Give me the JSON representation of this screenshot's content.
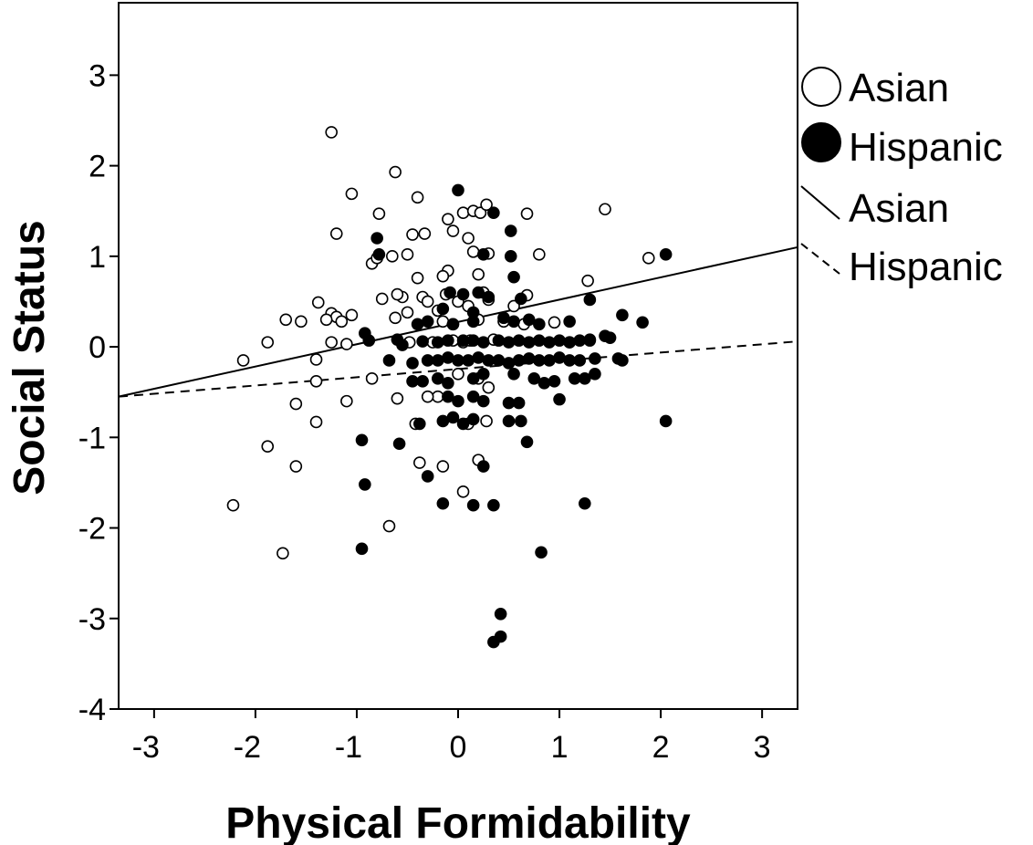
{
  "chart_data": {
    "type": "scatter",
    "title": "",
    "xlabel": "Physical Formidability",
    "ylabel": "Social Status",
    "xlim": [
      -3.35,
      3.35
    ],
    "ylim": [
      -4,
      3.8
    ],
    "x_ticks": [
      "-3",
      "-2",
      "-1",
      "0",
      "1",
      "2",
      "3"
    ],
    "y_ticks": [
      "3",
      "2",
      "1",
      "0",
      "-1",
      "-2",
      "-3",
      "-4"
    ],
    "grid": false,
    "legend_position": "right",
    "legend": {
      "asian_points": "Asian",
      "hispanic_points": "Hispanic",
      "asian_line": "Asian",
      "hispanic_line": "Hispanic"
    },
    "colors": {
      "asian_fill": "#ffffff",
      "hispanic_fill": "#000000",
      "stroke": "#000000"
    },
    "fit_lines": [
      {
        "group": "Asian",
        "style": "solid",
        "x": [
          -3.35,
          3.35
        ],
        "y": [
          -0.55,
          1.1
        ]
      },
      {
        "group": "Hispanic",
        "style": "dashed",
        "x": [
          -3.35,
          3.35
        ],
        "y": [
          -0.55,
          0.06
        ]
      }
    ],
    "series": [
      {
        "group": "Asian",
        "marker": "open-circle",
        "points": [
          [
            -1.25,
            2.37
          ],
          [
            -0.62,
            1.93
          ],
          [
            -1.05,
            1.69
          ],
          [
            -0.4,
            1.65
          ],
          [
            -1.2,
            1.25
          ],
          [
            -0.78,
            1.47
          ],
          [
            -0.45,
            1.24
          ],
          [
            -0.33,
            1.25
          ],
          [
            -0.65,
            1.0
          ],
          [
            -0.5,
            1.02
          ],
          [
            -0.85,
            0.92
          ],
          [
            -0.8,
            0.98
          ],
          [
            -0.4,
            0.76
          ],
          [
            -0.55,
            0.55
          ],
          [
            -0.6,
            0.58
          ],
          [
            -0.75,
            0.53
          ],
          [
            -1.38,
            0.49
          ],
          [
            -1.25,
            0.37
          ],
          [
            -1.2,
            0.33
          ],
          [
            -1.3,
            0.3
          ],
          [
            -1.15,
            0.28
          ],
          [
            -1.05,
            0.35
          ],
          [
            -1.7,
            0.3
          ],
          [
            -1.55,
            0.28
          ],
          [
            -1.88,
            0.05
          ],
          [
            -2.12,
            -0.15
          ],
          [
            -1.4,
            -0.14
          ],
          [
            -1.4,
            -0.38
          ],
          [
            -0.85,
            -0.35
          ],
          [
            -1.25,
            0.05
          ],
          [
            -1.1,
            0.03
          ],
          [
            -0.62,
            0.32
          ],
          [
            -0.5,
            0.38
          ],
          [
            -0.35,
            0.55
          ],
          [
            -1.1,
            -0.6
          ],
          [
            -1.6,
            -0.63
          ],
          [
            -1.4,
            -0.83
          ],
          [
            -1.88,
            -1.1
          ],
          [
            -1.6,
            -1.32
          ],
          [
            -2.22,
            -1.75
          ],
          [
            -1.73,
            -2.28
          ],
          [
            -0.68,
            -1.98
          ],
          [
            -0.6,
            -0.57
          ],
          [
            -0.42,
            -0.85
          ],
          [
            -0.38,
            -1.28
          ],
          [
            -0.15,
            -1.32
          ],
          [
            0.05,
            -1.6
          ],
          [
            0.2,
            -1.25
          ],
          [
            0.28,
            -0.82
          ],
          [
            0.1,
            -0.85
          ],
          [
            -0.1,
            0.84
          ],
          [
            -0.15,
            0.78
          ],
          [
            -0.05,
            1.28
          ],
          [
            0.05,
            1.48
          ],
          [
            -0.1,
            1.41
          ],
          [
            0.15,
            1.5
          ],
          [
            0.22,
            1.48
          ],
          [
            0.28,
            1.57
          ],
          [
            0.1,
            1.2
          ],
          [
            0.15,
            1.05
          ],
          [
            0.3,
            1.03
          ],
          [
            0.2,
            0.8
          ],
          [
            0.25,
            0.6
          ],
          [
            0.3,
            0.52
          ],
          [
            0.1,
            0.45
          ],
          [
            0.2,
            0.3
          ],
          [
            0.55,
            0.45
          ],
          [
            0.65,
            0.25
          ],
          [
            0.68,
            0.57
          ],
          [
            0.8,
            1.02
          ],
          [
            0.68,
            1.47
          ],
          [
            1.45,
            1.52
          ],
          [
            1.28,
            0.73
          ],
          [
            1.3,
            0.07
          ],
          [
            1.1,
            0.05
          ],
          [
            0.95,
            0.27
          ],
          [
            1.88,
            0.98
          ],
          [
            0.0,
            -0.3
          ],
          [
            0.2,
            -0.35
          ],
          [
            0.3,
            -0.45
          ],
          [
            -0.2,
            -0.55
          ],
          [
            -0.3,
            -0.55
          ],
          [
            0.05,
            0.05
          ],
          [
            -0.05,
            0.07
          ],
          [
            0.12,
            0.07
          ],
          [
            0.35,
            0.08
          ],
          [
            0.45,
            0.28
          ],
          [
            -0.15,
            0.28
          ],
          [
            -0.25,
            0.05
          ],
          [
            -0.48,
            0.05
          ],
          [
            -0.12,
            0.58
          ],
          [
            0.0,
            0.5
          ],
          [
            -0.3,
            0.5
          ],
          [
            -0.2,
            0.4
          ],
          [
            -0.05,
            0.25
          ]
        ]
      },
      {
        "group": "Hispanic",
        "marker": "filled-circle",
        "points": [
          [
            0.0,
            1.73
          ],
          [
            0.35,
            1.48
          ],
          [
            0.52,
            1.28
          ],
          [
            0.52,
            1.0
          ],
          [
            0.25,
            1.02
          ],
          [
            0.55,
            0.77
          ],
          [
            -0.8,
            1.2
          ],
          [
            -0.78,
            1.02
          ],
          [
            0.3,
            0.55
          ],
          [
            0.2,
            0.6
          ],
          [
            -0.08,
            0.6
          ],
          [
            0.05,
            0.58
          ],
          [
            -0.15,
            0.42
          ],
          [
            0.15,
            0.38
          ],
          [
            0.45,
            0.32
          ],
          [
            0.55,
            0.28
          ],
          [
            0.7,
            0.3
          ],
          [
            0.8,
            0.25
          ],
          [
            1.1,
            0.28
          ],
          [
            1.3,
            0.52
          ],
          [
            1.62,
            0.35
          ],
          [
            1.82,
            0.27
          ],
          [
            2.05,
            1.02
          ],
          [
            0.62,
            0.53
          ],
          [
            0.15,
            0.28
          ],
          [
            -0.05,
            0.25
          ],
          [
            -0.3,
            0.28
          ],
          [
            -0.4,
            0.25
          ],
          [
            -0.92,
            0.15
          ],
          [
            -0.88,
            0.07
          ],
          [
            -0.6,
            0.08
          ],
          [
            -0.55,
            0.02
          ],
          [
            -0.68,
            -0.15
          ],
          [
            -0.45,
            -0.18
          ],
          [
            -0.35,
            0.06
          ],
          [
            -0.2,
            0.05
          ],
          [
            -0.1,
            0.07
          ],
          [
            0.05,
            0.07
          ],
          [
            0.15,
            0.07
          ],
          [
            0.25,
            0.05
          ],
          [
            0.4,
            0.07
          ],
          [
            0.5,
            0.05
          ],
          [
            0.6,
            0.07
          ],
          [
            0.7,
            0.05
          ],
          [
            0.8,
            0.07
          ],
          [
            0.9,
            0.05
          ],
          [
            1.0,
            0.07
          ],
          [
            1.1,
            0.05
          ],
          [
            1.2,
            0.07
          ],
          [
            1.3,
            0.08
          ],
          [
            1.5,
            0.1
          ],
          [
            -0.3,
            -0.15
          ],
          [
            -0.2,
            -0.15
          ],
          [
            -0.1,
            -0.12
          ],
          [
            0.0,
            -0.15
          ],
          [
            0.1,
            -0.15
          ],
          [
            0.2,
            -0.12
          ],
          [
            0.3,
            -0.15
          ],
          [
            0.4,
            -0.15
          ],
          [
            0.5,
            -0.18
          ],
          [
            0.6,
            -0.15
          ],
          [
            0.7,
            -0.13
          ],
          [
            0.8,
            -0.15
          ],
          [
            0.9,
            -0.15
          ],
          [
            1.0,
            -0.12
          ],
          [
            1.1,
            -0.15
          ],
          [
            1.2,
            -0.15
          ],
          [
            1.35,
            -0.13
          ],
          [
            1.58,
            -0.13
          ],
          [
            -0.45,
            -0.38
          ],
          [
            -0.35,
            -0.38
          ],
          [
            -0.2,
            -0.35
          ],
          [
            -0.1,
            -0.4
          ],
          [
            0.15,
            -0.35
          ],
          [
            0.25,
            -0.3
          ],
          [
            0.55,
            -0.3
          ],
          [
            0.75,
            -0.35
          ],
          [
            0.85,
            -0.4
          ],
          [
            0.95,
            -0.38
          ],
          [
            1.15,
            -0.35
          ],
          [
            1.25,
            -0.35
          ],
          [
            1.35,
            -0.3
          ],
          [
            -0.1,
            -0.55
          ],
          [
            0.0,
            -0.6
          ],
          [
            0.15,
            -0.55
          ],
          [
            0.25,
            -0.6
          ],
          [
            0.5,
            -0.62
          ],
          [
            0.6,
            -0.62
          ],
          [
            1.0,
            -0.58
          ],
          [
            -0.38,
            -0.85
          ],
          [
            -0.15,
            -0.82
          ],
          [
            -0.05,
            -0.78
          ],
          [
            0.05,
            -0.85
          ],
          [
            0.15,
            -0.8
          ],
          [
            0.5,
            -0.82
          ],
          [
            0.62,
            -0.82
          ],
          [
            0.68,
            -1.05
          ],
          [
            2.05,
            -0.82
          ],
          [
            -0.58,
            -1.07
          ],
          [
            -0.95,
            -1.03
          ],
          [
            -0.92,
            -1.52
          ],
          [
            -0.3,
            -1.43
          ],
          [
            0.25,
            -1.32
          ],
          [
            -0.15,
            -1.73
          ],
          [
            0.15,
            -1.75
          ],
          [
            0.35,
            -1.75
          ],
          [
            1.25,
            -1.73
          ],
          [
            -0.95,
            -2.23
          ],
          [
            0.82,
            -2.27
          ],
          [
            0.42,
            -2.95
          ],
          [
            0.42,
            -3.2
          ],
          [
            0.35,
            -3.26
          ],
          [
            1.62,
            -0.15
          ],
          [
            1.45,
            0.12
          ]
        ]
      }
    ]
  }
}
